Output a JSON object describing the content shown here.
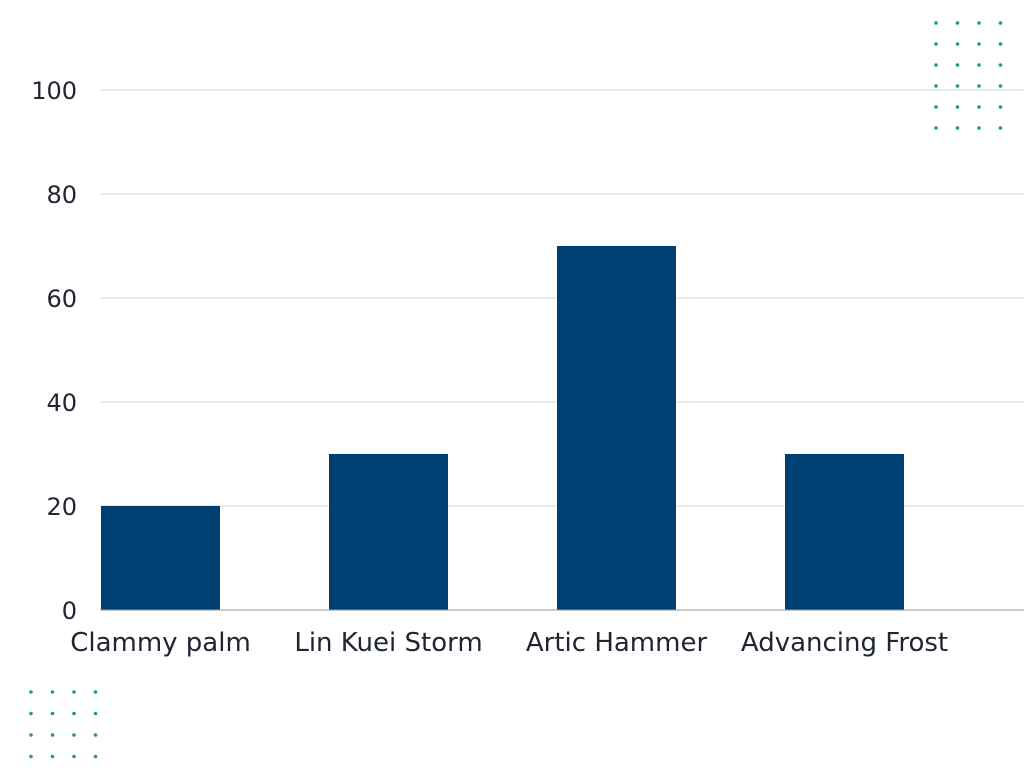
{
  "chart_data": {
    "type": "bar",
    "categories": [
      "Clammy palm",
      "Lin Kuei Storm",
      "Artic Hammer",
      "Advancing Frost"
    ],
    "values": [
      20,
      30,
      70,
      30
    ],
    "title": "",
    "xlabel": "",
    "ylabel": "",
    "ylim": [
      0,
      100
    ],
    "yticks": [
      0,
      20,
      40,
      60,
      80,
      100
    ],
    "grid": true,
    "legend": "none"
  },
  "colors": {
    "bar": "#003f72",
    "dots": "#1a9a94",
    "grid": "#d4d4d4",
    "text": "#1f2533"
  },
  "decorations": [
    {
      "name": "dot-grid-top-right",
      "rows": 6,
      "cols": 4
    },
    {
      "name": "dot-grid-bottom-left",
      "rows": 4,
      "cols": 4
    }
  ]
}
